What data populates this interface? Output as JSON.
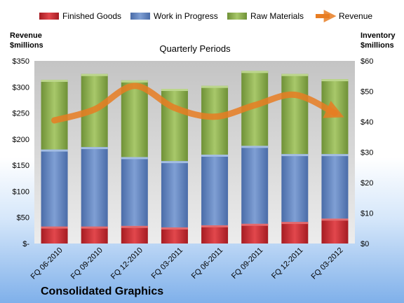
{
  "chart_data": {
    "type": "bar",
    "stacked": true,
    "subtitle": "Quarterly Periods",
    "company": "Consolidated Graphics",
    "left_axis": {
      "title_line1": "Revenue",
      "title_line2": "$millions",
      "min": 0,
      "max": 350,
      "step": 50,
      "zero_label": "$-"
    },
    "right_axis": {
      "title_line1": "Inventory",
      "title_line2": "$millions",
      "min": 0,
      "max": 60,
      "step": 10
    },
    "categories": [
      "FQ 06-2010",
      "FQ 09-2010",
      "FQ 12-2010",
      "FQ 03-2011",
      "FQ 06-2011",
      "FQ 09-2011",
      "FQ 12-2011",
      "FQ 03-2012"
    ],
    "series": [
      {
        "name": "Finished Goods",
        "axis": "right",
        "color": "#c0272d",
        "values": [
          5.6,
          5.6,
          5.8,
          5.3,
          6.0,
          6.5,
          7.1,
          8.2
        ]
      },
      {
        "name": "Work in Progress",
        "axis": "right",
        "color": "#5b7fbf",
        "values": [
          25.3,
          26.1,
          22.6,
          21.8,
          23.2,
          25.6,
          22.3,
          21.2
        ]
      },
      {
        "name": "Raw Materials",
        "axis": "right",
        "color": "#8fb24c",
        "values": [
          22.9,
          24.0,
          25.2,
          23.7,
          22.6,
          24.6,
          26.3,
          24.6
        ]
      },
      {
        "name": "Revenue",
        "axis": "left",
        "type": "line",
        "color": "#e87d22",
        "values": [
          236,
          257,
          302,
          260,
          243,
          265,
          285,
          250
        ]
      }
    ],
    "legend_position": "top",
    "grid": false
  }
}
